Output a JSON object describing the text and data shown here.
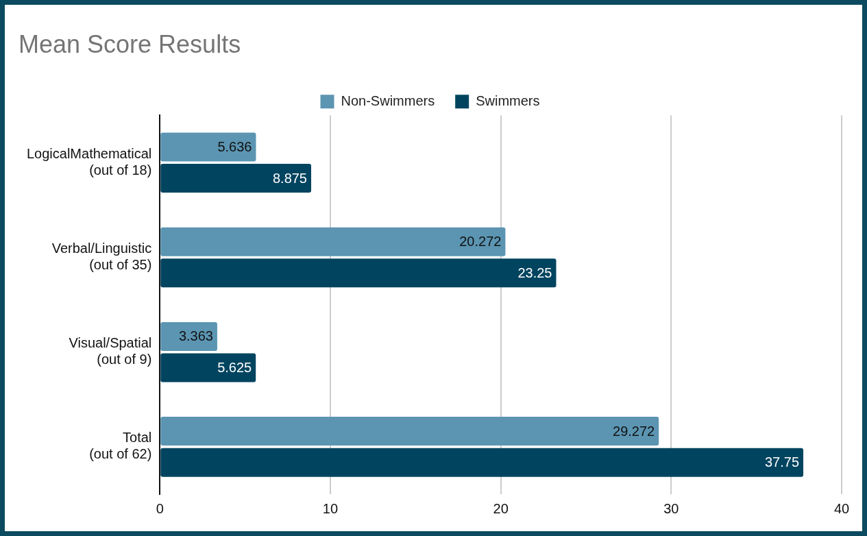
{
  "chart_data": {
    "type": "bar",
    "orientation": "horizontal",
    "title": "Mean Score Results",
    "categories": [
      "LogicalMathematical\n(out of 18)",
      "Verbal/Linguistic\n(out of 35)",
      "Visual/Spatial\n(out of 9)",
      "Total\n(out of 62)"
    ],
    "series": [
      {
        "name": "Non-Swimmers",
        "color": "#5b95b2",
        "values": [
          5.636,
          20.272,
          3.363,
          29.272
        ]
      },
      {
        "name": "Swimmers",
        "color": "#00445f",
        "values": [
          8.875,
          23.25,
          5.625,
          37.75
        ]
      }
    ],
    "xlim": [
      0,
      40
    ],
    "xticks": [
      0,
      10,
      20,
      30,
      40
    ],
    "grid": "x",
    "legend": "top",
    "data_labels": true
  }
}
